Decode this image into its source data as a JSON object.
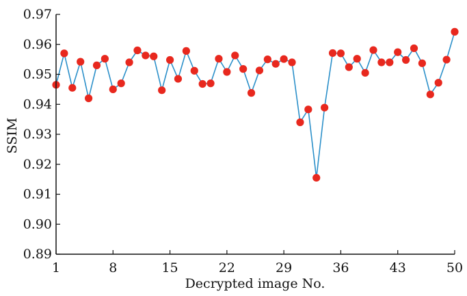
{
  "chart_data": {
    "type": "line",
    "title": "",
    "xlabel": "Decrypted image No.",
    "ylabel": "SSIM",
    "xlim": [
      1,
      50
    ],
    "ylim": [
      0.89,
      0.97
    ],
    "x_ticks": [
      1,
      8,
      15,
      22,
      29,
      36,
      43,
      50
    ],
    "y_ticks": [
      0.89,
      0.9,
      0.91,
      0.92,
      0.93,
      0.94,
      0.95,
      0.96,
      0.97
    ],
    "y_tick_labels": [
      "0.89",
      "0.90",
      "0.91",
      "0.92",
      "0.93",
      "0.94",
      "0.95",
      "0.96",
      "0.97"
    ],
    "grid": false,
    "legend": "none",
    "colors": {
      "line": "#2a8fc9",
      "marker": "#e8281e",
      "axis": "#111111"
    },
    "series": [
      {
        "x": [
          1,
          2,
          3,
          4,
          5,
          6,
          7,
          8,
          9,
          10,
          11,
          12,
          13,
          14,
          15,
          16,
          17,
          18,
          19,
          20,
          21,
          22,
          23,
          24,
          25,
          26,
          27,
          28,
          29,
          30,
          31,
          32,
          33,
          34,
          35,
          36,
          37,
          38,
          39,
          40,
          41,
          42,
          43,
          44,
          45,
          46,
          47,
          48,
          49,
          50
        ],
        "values": [
          0.9465,
          0.957,
          0.9455,
          0.9542,
          0.942,
          0.953,
          0.9552,
          0.945,
          0.947,
          0.954,
          0.958,
          0.9563,
          0.956,
          0.9447,
          0.9548,
          0.9485,
          0.9578,
          0.9512,
          0.9468,
          0.947,
          0.9552,
          0.9508,
          0.9563,
          0.9518,
          0.9438,
          0.9513,
          0.955,
          0.9535,
          0.9551,
          0.954,
          0.934,
          0.9383,
          0.9155,
          0.9389,
          0.9571,
          0.957,
          0.9524,
          0.9552,
          0.9505,
          0.9581,
          0.954,
          0.954,
          0.9574,
          0.9548,
          0.9587,
          0.9537,
          0.9433,
          0.9472,
          0.9549,
          0.9642
        ]
      }
    ]
  }
}
